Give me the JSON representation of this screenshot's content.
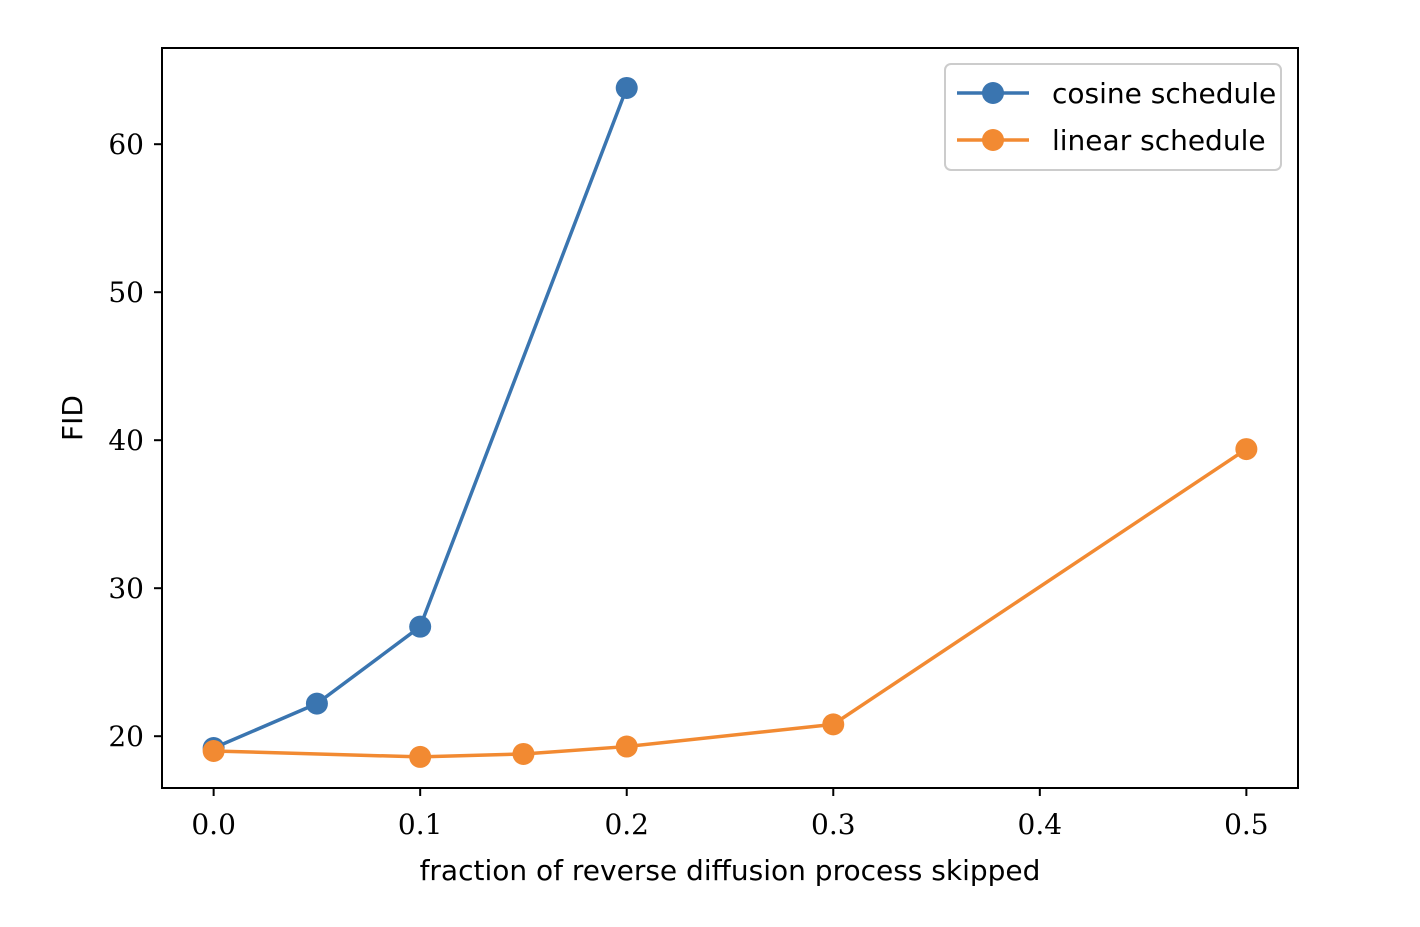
{
  "chart_data": {
    "type": "line",
    "title": "",
    "xlabel": "fraction of reverse diffusion process skipped",
    "ylabel": "FID",
    "xlim": [
      -0.025,
      0.525
    ],
    "ylim": [
      16.5,
      66.5
    ],
    "xticks": [
      0.0,
      0.1,
      0.2,
      0.3,
      0.4,
      0.5
    ],
    "xtick_labels": [
      "0.0",
      "0.1",
      "0.2",
      "0.3",
      "0.4",
      "0.5"
    ],
    "yticks": [
      20,
      30,
      40,
      50,
      60
    ],
    "ytick_labels": [
      "20",
      "30",
      "40",
      "50",
      "60"
    ],
    "grid": false,
    "legend_position": "top-right",
    "series": [
      {
        "name": "cosine schedule",
        "color": "#3a75b0",
        "marker": "circle",
        "x": [
          0.0,
          0.05,
          0.1,
          0.2
        ],
        "y": [
          19.2,
          22.2,
          27.4,
          63.8
        ]
      },
      {
        "name": "linear schedule",
        "color": "#f28a32",
        "marker": "circle",
        "x": [
          0.0,
          0.1,
          0.15,
          0.2,
          0.3,
          0.5
        ],
        "y": [
          19.0,
          18.6,
          18.8,
          19.3,
          20.8,
          39.4
        ]
      }
    ]
  }
}
